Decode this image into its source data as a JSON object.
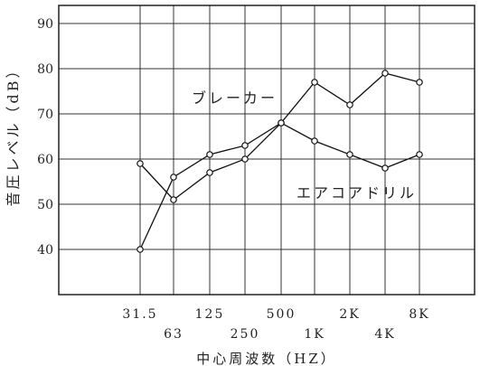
{
  "chart_data": {
    "type": "line",
    "title": "",
    "xlabel": "中心周波数（HZ）",
    "ylabel": "音圧レベル（dB）",
    "x_ticks": [
      "31.5",
      "63",
      "125",
      "250",
      "500",
      "1K",
      "2K",
      "4K",
      "8K"
    ],
    "y_ticks": [
      "40",
      "50",
      "60",
      "70",
      "80",
      "90"
    ],
    "ylim": [
      30,
      94
    ],
    "grid": true,
    "series": [
      {
        "name": "ブレーカー",
        "values": [
          40,
          56,
          61,
          63,
          68,
          77,
          72,
          79,
          77
        ]
      },
      {
        "name": "エアコアドリル",
        "values": [
          59,
          51,
          57,
          60,
          68,
          64,
          61,
          58,
          61
        ]
      }
    ]
  }
}
